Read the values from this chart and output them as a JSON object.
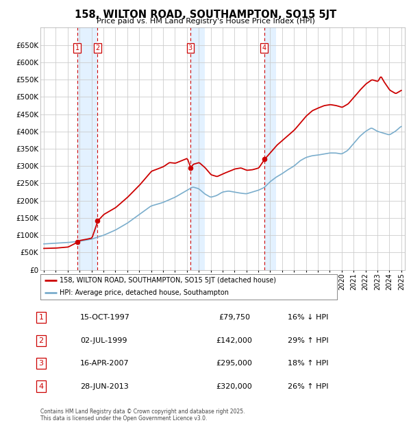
{
  "title": "158, WILTON ROAD, SOUTHAMPTON, SO15 5JT",
  "subtitle": "Price paid vs. HM Land Registry's House Price Index (HPI)",
  "footer": "Contains HM Land Registry data © Crown copyright and database right 2025.\nThis data is licensed under the Open Government Licence v3.0.",
  "legend_red": "158, WILTON ROAD, SOUTHAMPTON, SO15 5JT (detached house)",
  "legend_blue": "HPI: Average price, detached house, Southampton",
  "transactions": [
    {
      "id": 1,
      "date": "15-OCT-1997",
      "price": "£79,750",
      "pct": "16% ↓ HPI",
      "year": 1997.79
    },
    {
      "id": 2,
      "date": "02-JUL-1999",
      "price": "£142,000",
      "pct": "29% ↑ HPI",
      "year": 1999.5
    },
    {
      "id": 3,
      "date": "16-APR-2007",
      "price": "£295,000",
      "pct": "18% ↑ HPI",
      "year": 2007.29
    },
    {
      "id": 4,
      "date": "28-JUN-2013",
      "price": "£320,000",
      "pct": "26% ↑ HPI",
      "year": 2013.49
    }
  ],
  "ylim": [
    0,
    700000
  ],
  "yticks": [
    0,
    50000,
    100000,
    150000,
    200000,
    250000,
    300000,
    350000,
    400000,
    450000,
    500000,
    550000,
    600000,
    650000
  ],
  "xlim": [
    1994.7,
    2025.3
  ],
  "xticks": [
    1995,
    1996,
    1997,
    1998,
    1999,
    2000,
    2001,
    2002,
    2003,
    2004,
    2005,
    2006,
    2007,
    2008,
    2009,
    2010,
    2011,
    2012,
    2013,
    2014,
    2015,
    2016,
    2017,
    2018,
    2019,
    2020,
    2021,
    2022,
    2023,
    2024,
    2025
  ],
  "red_color": "#cc0000",
  "blue_color": "#7aadcc",
  "vline_color": "#cc0000",
  "bg_chart": "#ffffff",
  "bg_figure": "#ffffff",
  "grid_color": "#cccccc",
  "highlight_bg": "#ddeeff"
}
